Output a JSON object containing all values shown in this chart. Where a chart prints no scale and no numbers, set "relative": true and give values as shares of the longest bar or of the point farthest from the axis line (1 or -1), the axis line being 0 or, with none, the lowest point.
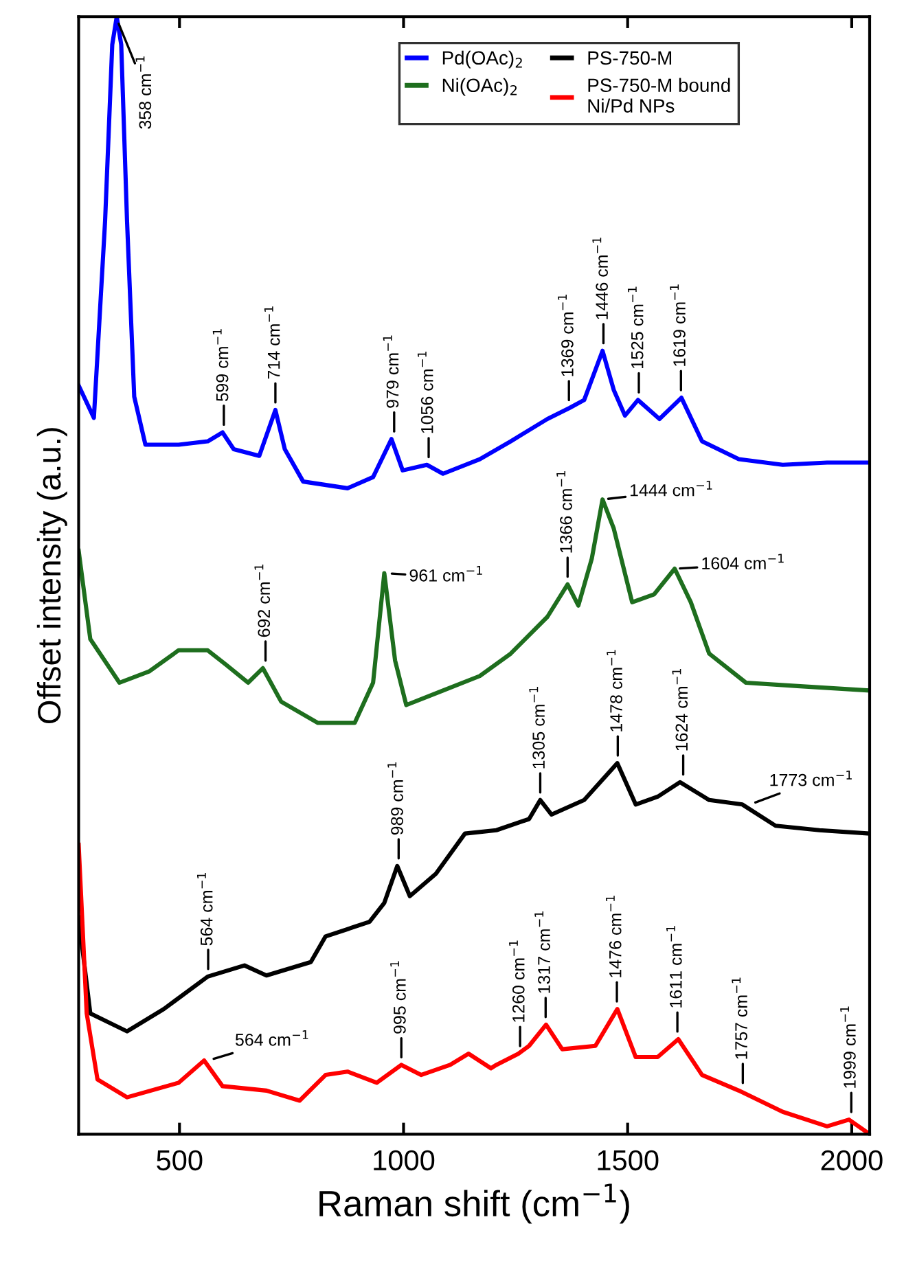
{
  "chart_data": {
    "type": "line",
    "relative": true,
    "xlabel": "Raman shift (cm$^{−1}$)",
    "ylabel": "Offset intensity (a.u.)",
    "xlim": [
      275,
      2040
    ],
    "xticks": [
      500,
      1000,
      1500,
      2000
    ],
    "grid": false,
    "legend": "top",
    "marker": "none",
    "line_style": "solid",
    "series": [
      {
        "name": "Pd(OAc)$_{2}$",
        "color": "#0000ff",
        "x": [
          275,
          309,
          334,
          350,
          360,
          370,
          383,
          399,
          424,
          498,
          563,
          596,
          621,
          678,
          714,
          735,
          776,
          875,
          932,
          973,
          998,
          1052,
          1088,
          1170,
          1239,
          1321,
          1371,
          1403,
          1444,
          1469,
          1494,
          1523,
          1571,
          1620,
          1666,
          1748,
          1846,
          1945,
          2040
        ],
        "values": [
          0.67,
          0.641,
          0.817,
          0.975,
          1.0,
          0.975,
          0.817,
          0.66,
          0.617,
          0.617,
          0.62,
          0.628,
          0.613,
          0.607,
          0.648,
          0.613,
          0.584,
          0.578,
          0.588,
          0.622,
          0.594,
          0.599,
          0.591,
          0.604,
          0.62,
          0.64,
          0.65,
          0.657,
          0.701,
          0.666,
          0.643,
          0.657,
          0.64,
          0.659,
          0.62,
          0.604,
          0.599,
          0.601,
          0.601
        ]
      },
      {
        "name": "Ni(OAc)$_{2}$",
        "color": "#1e6e1e",
        "x": [
          275,
          301,
          366,
          432,
          498,
          563,
          604,
          653,
          686,
          727,
          809,
          891,
          932,
          957,
          981,
          1006,
          1088,
          1170,
          1239,
          1321,
          1366,
          1390,
          1420,
          1444,
          1469,
          1510,
          1559,
          1605,
          1641,
          1682,
          1764,
          1879,
          2040
        ],
        "values": [
          0.522,
          0.443,
          0.404,
          0.414,
          0.433,
          0.433,
          0.42,
          0.404,
          0.417,
          0.387,
          0.368,
          0.368,
          0.404,
          0.502,
          0.424,
          0.384,
          0.397,
          0.41,
          0.43,
          0.463,
          0.492,
          0.473,
          0.515,
          0.568,
          0.542,
          0.476,
          0.483,
          0.506,
          0.476,
          0.43,
          0.404,
          0.401,
          0.397
        ]
      },
      {
        "name": "PS-750-M",
        "color": "#000000",
        "x": [
          275,
          301,
          383,
          465,
          563,
          645,
          694,
          793,
          826,
          924,
          957,
          986,
          1014,
          1072,
          1137,
          1207,
          1280,
          1305,
          1330,
          1403,
          1477,
          1518,
          1567,
          1617,
          1682,
          1756,
          1830,
          1928,
          2040
        ],
        "values": [
          0.194,
          0.108,
          0.092,
          0.112,
          0.141,
          0.151,
          0.142,
          0.154,
          0.177,
          0.19,
          0.207,
          0.24,
          0.213,
          0.233,
          0.269,
          0.272,
          0.282,
          0.299,
          0.286,
          0.299,
          0.332,
          0.295,
          0.302,
          0.315,
          0.299,
          0.295,
          0.276,
          0.272,
          0.269
        ]
      },
      {
        "name": "PS-750-M bound\nNi/Pd NPs",
        "color": "#ff0000",
        "x": [
          275,
          293,
          317,
          383,
          498,
          555,
          596,
          694,
          768,
          826,
          875,
          940,
          995,
          1039,
          1104,
          1145,
          1195,
          1207,
          1256,
          1280,
          1318,
          1354,
          1428,
          1477,
          1518,
          1567,
          1613,
          1666,
          1748,
          1846,
          1945,
          1994,
          2040
        ],
        "values": [
          0.259,
          0.108,
          0.049,
          0.033,
          0.046,
          0.066,
          0.043,
          0.039,
          0.03,
          0.053,
          0.056,
          0.046,
          0.062,
          0.053,
          0.062,
          0.072,
          0.059,
          0.062,
          0.072,
          0.079,
          0.098,
          0.076,
          0.079,
          0.112,
          0.069,
          0.069,
          0.085,
          0.053,
          0.039,
          0.02,
          0.007,
          0.013,
          0.0
        ]
      }
    ],
    "annotations": [
      {
        "text": "358 cm$^{−1}$",
        "x": 358,
        "y": 1.0
      },
      {
        "text": "599 cm$^{−1}$",
        "x": 599,
        "y": 0.628
      },
      {
        "text": "714 cm$^{−1}$",
        "x": 714,
        "y": 0.648
      },
      {
        "text": "979 cm$^{−1}$",
        "x": 979,
        "y": 0.622
      },
      {
        "text": "1056 cm$^{−1}$",
        "x": 1056,
        "y": 0.599
      },
      {
        "text": "1369 cm$^{−1}$",
        "x": 1369,
        "y": 0.65
      },
      {
        "text": "1446 cm$^{−1}$",
        "x": 1446,
        "y": 0.701
      },
      {
        "text": "1525 cm$^{−1}$",
        "x": 1525,
        "y": 0.657
      },
      {
        "text": "1619 cm$^{−1}$",
        "x": 1619,
        "y": 0.659
      },
      {
        "text": "692 cm$^{−1}$",
        "x": 692,
        "y": 0.417
      },
      {
        "text": "961 cm$^{−1}$",
        "x": 961,
        "y": 0.502
      },
      {
        "text": "1366 cm$^{−1}$",
        "x": 1366,
        "y": 0.492
      },
      {
        "text": "1444 cm$^{−1}$",
        "x": 1444,
        "y": 0.568
      },
      {
        "text": "1604 cm$^{−1}$",
        "x": 1604,
        "y": 0.506
      },
      {
        "text": "564 cm$^{−1}$",
        "x": 564,
        "y": 0.141
      },
      {
        "text": "989 cm$^{−1}$",
        "x": 989,
        "y": 0.24
      },
      {
        "text": "1305 cm$^{−1}$",
        "x": 1305,
        "y": 0.299
      },
      {
        "text": "1478 cm$^{−1}$",
        "x": 1478,
        "y": 0.332
      },
      {
        "text": "1624 cm$^{−1}$",
        "x": 1624,
        "y": 0.315
      },
      {
        "text": "1773 cm$^{−1}$",
        "x": 1773,
        "y": 0.295
      },
      {
        "text": "564 cm$^{−1}$",
        "x": 564,
        "y": 0.066
      },
      {
        "text": "995 cm$^{−1}$",
        "x": 995,
        "y": 0.062
      },
      {
        "text": "1260 cm$^{−1}$",
        "x": 1260,
        "y": 0.072
      },
      {
        "text": "1317 cm$^{−1}$",
        "x": 1317,
        "y": 0.098
      },
      {
        "text": "1476 cm$^{−1}$",
        "x": 1476,
        "y": 0.112
      },
      {
        "text": "1611 cm$^{−1}$",
        "x": 1611,
        "y": 0.085
      },
      {
        "text": "1757 cm$^{−1}$",
        "x": 1757,
        "y": 0.039
      },
      {
        "text": "1999 cm$^{−1}$",
        "x": 1999,
        "y": 0.013
      }
    ]
  }
}
